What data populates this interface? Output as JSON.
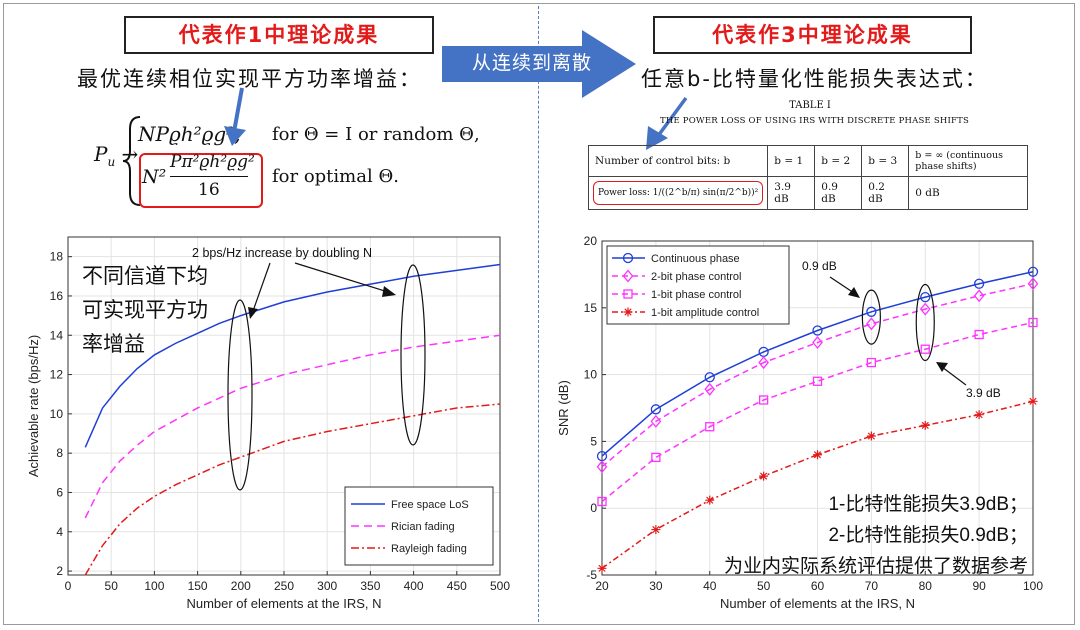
{
  "left_panel": {
    "box_title": "代表作1中理论成果",
    "subtitle": "最优连续相位实现平方功率增益：",
    "equation": {
      "lhs": "Pu",
      "case1_expr": "NPϱh²ϱg²,",
      "case1_cond": "for Θ = I or random Θ,",
      "case2_num": "Pπ²ϱh²ϱg²",
      "case2_den": "16",
      "case2_prefix": "N²",
      "case2_cond": "for optimal Θ."
    }
  },
  "center_arrow": {
    "label": "从连续到离散"
  },
  "right_panel": {
    "box_title": "代表作3中理论成果",
    "subtitle": "任意b-比特量化性能损失表达式：",
    "table_caption_1": "TABLE I",
    "table_caption_2": "THE POWER LOSS OF USING IRS WITH DISCRETE PHASE SHIFTS",
    "table": {
      "header": [
        "Number of control bits: b",
        "b = 1",
        "b = 2",
        "b = 3",
        "b = ∞ (continuous phase shifts)"
      ],
      "row_label": "Power loss: 1/((2^b/π) sin(π/2^b))²",
      "row_values": [
        "3.9 dB",
        "0.9 dB",
        "0.2 dB",
        "0 dB"
      ]
    }
  },
  "colors": {
    "accent_red": "#e31a1a",
    "arrow_blue": "#4472c4",
    "divider": "#5a7fb8"
  },
  "chart_data": [
    {
      "type": "line",
      "title": "",
      "xlabel": "Number of elements at the IRS, N",
      "ylabel": "Achievable rate (bps/Hz)",
      "xlim": [
        0,
        500
      ],
      "ylim": [
        1.8,
        19
      ],
      "xticks": [
        0,
        50,
        100,
        150,
        200,
        250,
        300,
        350,
        400,
        450,
        500
      ],
      "yticks": [
        2,
        4,
        6,
        8,
        10,
        12,
        14,
        16,
        18
      ],
      "grid": true,
      "legend_position": "bottom-right",
      "x": [
        20,
        40,
        60,
        80,
        100,
        125,
        150,
        175,
        200,
        250,
        300,
        350,
        400,
        450,
        500
      ],
      "series": [
        {
          "name": "Free space LoS",
          "color": "#1f3fd6",
          "dash": "",
          "values": [
            8.3,
            10.3,
            11.4,
            12.3,
            13.0,
            13.6,
            14.1,
            14.6,
            15.0,
            15.7,
            16.2,
            16.6,
            17.0,
            17.3,
            17.6
          ]
        },
        {
          "name": "Rician fading",
          "color": "#ff33ff",
          "dash": "8 5",
          "values": [
            4.7,
            6.5,
            7.6,
            8.4,
            9.1,
            9.7,
            10.3,
            10.8,
            11.3,
            12.0,
            12.5,
            13.0,
            13.4,
            13.7,
            14.0
          ]
        },
        {
          "name": "Rayleigh fading",
          "color": "#e31a1a",
          "dash": "8 3 2 3",
          "values": [
            1.8,
            3.3,
            4.4,
            5.2,
            5.8,
            6.4,
            6.9,
            7.4,
            7.8,
            8.6,
            9.1,
            9.5,
            9.9,
            10.3,
            10.5
          ]
        }
      ],
      "annotations": {
        "top": "2 bps/Hz increase by doubling N",
        "cn": [
          "不同信道下均",
          "可实现平方功",
          "率增益"
        ]
      }
    },
    {
      "type": "line",
      "title": "",
      "xlabel": "Number of elements at the IRS, N",
      "ylabel": "SNR (dB)",
      "xlim": [
        20,
        100
      ],
      "ylim": [
        -5,
        20
      ],
      "xticks": [
        20,
        30,
        40,
        50,
        60,
        70,
        80,
        90,
        100
      ],
      "yticks": [
        -5,
        0,
        5,
        10,
        15,
        20
      ],
      "grid": true,
      "legend_position": "top-left",
      "x": [
        20,
        30,
        40,
        50,
        60,
        70,
        80,
        90,
        100
      ],
      "series": [
        {
          "name": "Continuous phase",
          "color": "#1f3fd6",
          "dash": "",
          "marker": "circle",
          "values": [
            3.9,
            7.4,
            9.8,
            11.7,
            13.3,
            14.7,
            15.8,
            16.8,
            17.7
          ]
        },
        {
          "name": "2-bit phase control",
          "color": "#ff33ff",
          "dash": "6 4",
          "marker": "diamond",
          "values": [
            3.1,
            6.5,
            8.9,
            10.9,
            12.4,
            13.8,
            14.9,
            15.9,
            16.8
          ]
        },
        {
          "name": "1-bit phase control",
          "color": "#ff33ff",
          "dash": "6 4",
          "marker": "square",
          "values": [
            0.5,
            3.8,
            6.1,
            8.1,
            9.5,
            10.9,
            11.9,
            13.0,
            13.9
          ]
        },
        {
          "name": "1-bit amplitude control",
          "color": "#e31a1a",
          "dash": "6 3 2 3",
          "marker": "star",
          "values": [
            -4.5,
            -1.6,
            0.6,
            2.4,
            4.0,
            5.4,
            6.2,
            7.0,
            8.0
          ]
        }
      ],
      "annotations": {
        "a09": "0.9 dB",
        "a39": "3.9 dB",
        "cn": [
          "1-比特性能损失3.9dB；",
          "2-比特性能损失0.9dB；",
          "为业内实际系统评估提供了数据参考"
        ]
      }
    }
  ]
}
